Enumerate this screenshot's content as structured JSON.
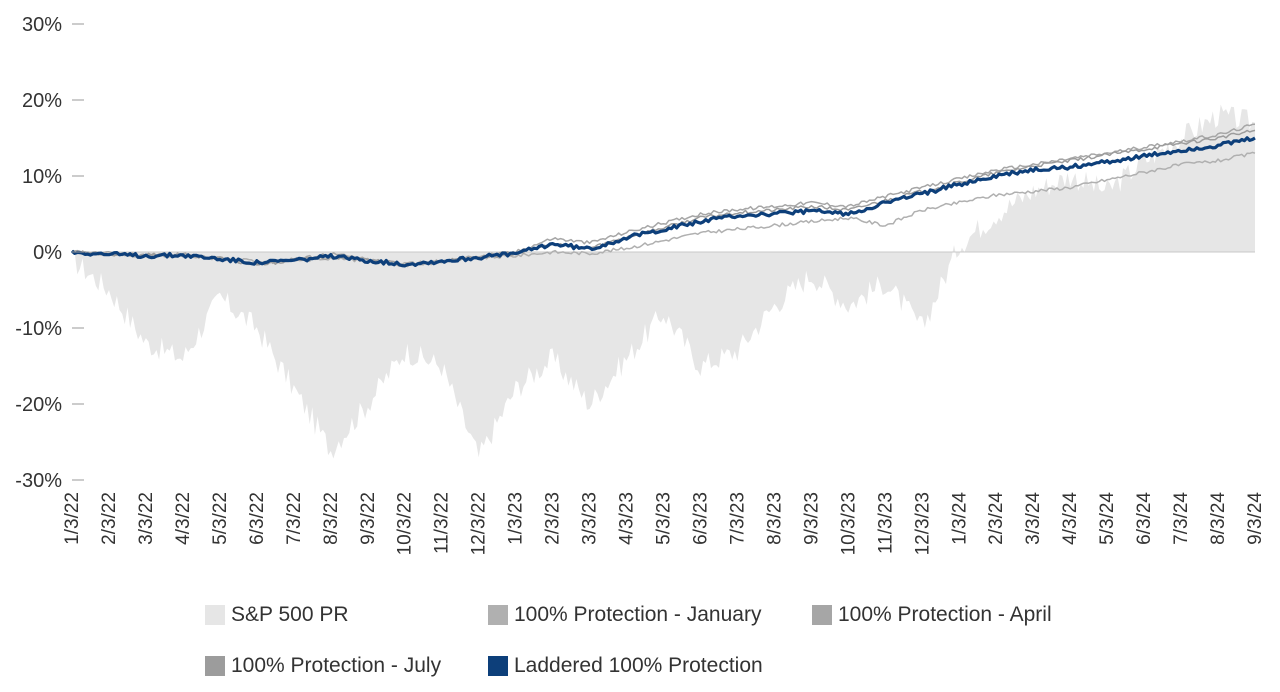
{
  "chart_data": {
    "type": "area+line",
    "title": "",
    "xlabel": "",
    "ylabel": "",
    "ylim": [
      -30,
      30
    ],
    "y_ticks": [
      "30%",
      "20%",
      "10%",
      "0%",
      "-10%",
      "-20%",
      "-30%"
    ],
    "y_tick_values": [
      30,
      20,
      10,
      0,
      -10,
      -20,
      -30
    ],
    "x_ticks": [
      "1/3/22",
      "2/3/22",
      "3/3/22",
      "4/3/22",
      "5/3/22",
      "6/3/22",
      "7/3/22",
      "8/3/22",
      "9/3/22",
      "10/3/22",
      "11/3/22",
      "12/3/22",
      "1/3/23",
      "2/3/23",
      "3/3/23",
      "4/3/23",
      "5/3/23",
      "6/3/23",
      "7/3/23",
      "8/3/23",
      "9/3/23",
      "10/3/23",
      "11/3/23",
      "12/3/23",
      "1/3/24",
      "2/3/24",
      "3/3/24",
      "4/3/24",
      "5/3/24",
      "6/3/24",
      "7/3/24",
      "8/3/24",
      "9/3/24"
    ],
    "grid": false,
    "legend_position": "bottom",
    "series": [
      {
        "name": "S&P 500 PR",
        "kind": "area",
        "color": "#e6e6e6",
        "values": [
          -1,
          -5,
          -12,
          -14,
          -6,
          -10,
          -18,
          -26,
          -20,
          -13,
          -15,
          -27,
          -18,
          -14,
          -20,
          -14,
          -8,
          -15,
          -13,
          -7,
          -3,
          -7,
          -4,
          -10,
          1,
          5,
          8,
          10,
          8,
          12,
          15,
          18,
          17
        ]
      },
      {
        "name": "100% Protection - January",
        "kind": "line",
        "color": "#b0b0b0",
        "values": [
          0,
          -0.3,
          -0.5,
          -0.5,
          -0.8,
          -1.2,
          -1.2,
          -0.8,
          -1.2,
          -1.5,
          -1.2,
          -0.8,
          -0.5,
          0,
          -0.2,
          0.5,
          1.5,
          2.5,
          3.0,
          3.5,
          4.0,
          4.5,
          3.5,
          5.5,
          6.5,
          7.5,
          8.0,
          8.5,
          9.5,
          10.5,
          11.5,
          12.0,
          13.0
        ]
      },
      {
        "name": "100% Protection - April",
        "kind": "line",
        "color": "#a6a6a6",
        "values": [
          0,
          -0.2,
          -0.5,
          -0.3,
          -1.0,
          -1.5,
          -1.0,
          -0.2,
          -1.0,
          -1.8,
          -1.3,
          -0.5,
          0,
          1.8,
          1.2,
          2.6,
          3.8,
          5.0,
          5.6,
          6.0,
          6.5,
          6.0,
          7.3,
          8.5,
          9.6,
          10.8,
          11.5,
          12.3,
          13.0,
          13.8,
          14.6,
          15.4,
          16.8
        ]
      },
      {
        "name": "100% Protection - July",
        "kind": "line",
        "color": "#9c9c9c",
        "values": [
          0,
          -0.3,
          -0.4,
          -0.4,
          -0.8,
          -1.8,
          -1.0,
          -0.7,
          -1.0,
          -1.6,
          -1.2,
          -0.7,
          -0.2,
          1.0,
          0.5,
          2.0,
          3.2,
          4.5,
          5.2,
          5.5,
          6.0,
          5.5,
          6.8,
          8.0,
          9.2,
          10.4,
          11.3,
          12.0,
          12.8,
          13.5,
          14.3,
          15.0,
          16.0
        ]
      },
      {
        "name": "Laddered 100% Protection",
        "kind": "line",
        "color": "#0d3f7a",
        "values": [
          0,
          -0.3,
          -0.5,
          -0.4,
          -0.9,
          -1.4,
          -1.1,
          -0.6,
          -1.1,
          -1.6,
          -1.2,
          -0.7,
          -0.2,
          1.1,
          0.4,
          1.9,
          3.0,
          4.0,
          4.8,
          5.0,
          5.4,
          5.0,
          6.5,
          7.7,
          8.9,
          10.0,
          10.8,
          11.2,
          11.9,
          12.6,
          13.4,
          14.0,
          15.0
        ]
      }
    ]
  }
}
